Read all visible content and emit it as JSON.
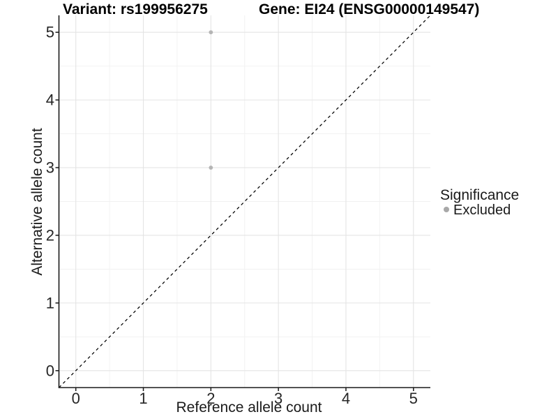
{
  "chart_data": {
    "type": "scatter",
    "title_left": "Variant: rs199956275",
    "title_right": "Gene: EI24 (ENSG00000149547)",
    "xlabel": "Reference allele count",
    "ylabel": "Alternative allele count",
    "x_ticks": [
      "0",
      "1",
      "2",
      "3",
      "4",
      "5"
    ],
    "y_ticks": [
      "0",
      "1",
      "2",
      "3",
      "4",
      "5"
    ],
    "xlim": [
      -0.25,
      5.25
    ],
    "ylim": [
      -0.25,
      5.25
    ],
    "grid": {
      "major": true,
      "minor": true,
      "major_color": "#e4e4e4",
      "minor_color": "#f1f1f1"
    },
    "identity_line": {
      "slope": 1,
      "intercept": 0,
      "style": "dashed",
      "color": "#000000"
    },
    "series": [
      {
        "name": "Excluded",
        "color": "#b5b5b5",
        "points": [
          {
            "x": 2,
            "y": 5
          },
          {
            "x": 2,
            "y": 3
          }
        ]
      }
    ],
    "legend": {
      "title": "Significance",
      "position": "right",
      "items": [
        {
          "label": "Excluded",
          "color": "#a8a8a8"
        }
      ]
    }
  }
}
